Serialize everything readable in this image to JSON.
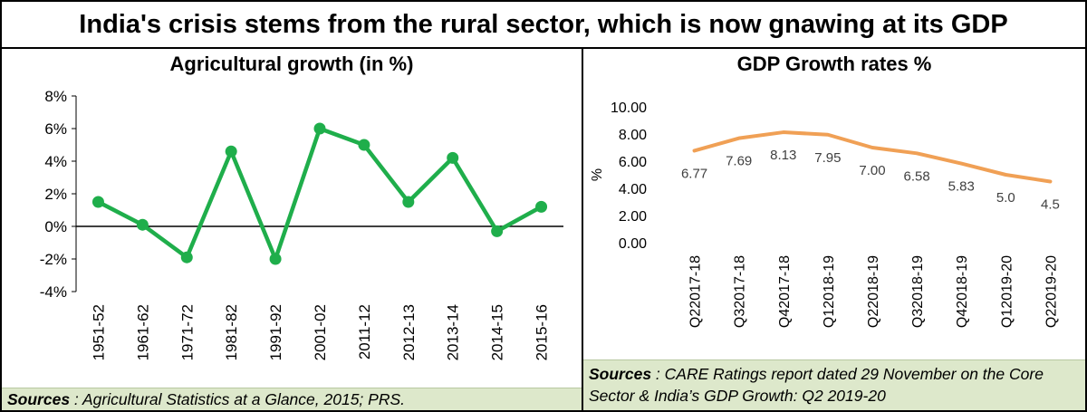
{
  "main_title": "India's crisis stems from the rural sector, which is now gnawing at its GDP",
  "left": {
    "source_label": "Sources",
    "source_text": " : Agricultural Statistics at a Glance, 2015; PRS."
  },
  "right": {
    "source_label": "Sources",
    "source_text": " : CARE Ratings report dated 29 November on the Core Sector & India’s GDP Growth: Q2 2019-20"
  },
  "chart_data": [
    {
      "type": "line",
      "title": "Agricultural growth (in %)",
      "categories": [
        "1951-52",
        "1961-62",
        "1971-72",
        "1981-82",
        "1991-92",
        "2001-02",
        "2011-12",
        "2012-13",
        "2013-14",
        "2014-15",
        "2015-16"
      ],
      "values": [
        1.5,
        0.1,
        -1.9,
        4.6,
        -2.0,
        6.0,
        5.0,
        1.5,
        4.2,
        -0.3,
        1.2
      ],
      "yticks": [
        "8%",
        "6%",
        "4%",
        "2%",
        "0%",
        "-2%",
        "-4%"
      ],
      "ylim": [
        -4,
        8
      ],
      "color": "#1fae4b",
      "grid": false
    },
    {
      "type": "line",
      "title": "GDP Growth rates %",
      "ylabel": "%",
      "categories": [
        "Q22017-18",
        "Q32017-18",
        "Q42017-18",
        "Q12018-19",
        "Q22018-19",
        "Q32018-19",
        "Q42018-19",
        "Q12019-20",
        "Q22019-20"
      ],
      "values": [
        6.77,
        7.69,
        8.13,
        7.95,
        7.0,
        6.58,
        5.83,
        5.0,
        4.5
      ],
      "data_labels": [
        "6.77",
        "7.69",
        "8.13",
        "7.95",
        "7.00",
        "6.58",
        "5.83",
        "5.0",
        "4.5"
      ],
      "yticks": [
        "10.00",
        "8.00",
        "6.00",
        "4.00",
        "2.00",
        "0.00"
      ],
      "ylim": [
        0,
        10
      ],
      "color": "#f0a055",
      "grid": false
    }
  ]
}
